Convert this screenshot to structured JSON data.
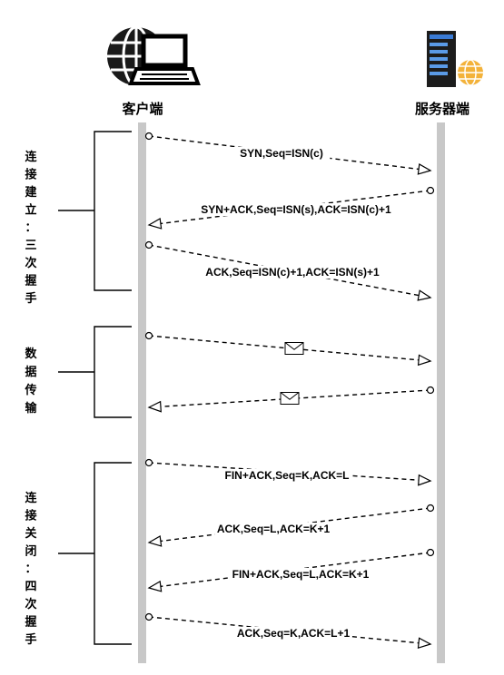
{
  "nodes": {
    "client": {
      "label": "客户端",
      "icon": "globe-laptop-icon"
    },
    "server": {
      "label": "服务器端",
      "icon": "server-globe-icon"
    }
  },
  "phases": [
    {
      "id": "handshake",
      "label": "连接建立：三次握手"
    },
    {
      "id": "transfer",
      "label": "数据传输"
    },
    {
      "id": "teardown",
      "label": "连接关闭：四次握手"
    }
  ],
  "messages": [
    {
      "label": "SYN,Seq=ISN(c)",
      "direction": "client-to-server"
    },
    {
      "label": "SYN+ACK,Seq=ISN(s),ACK=ISN(c)+1",
      "direction": "server-to-client"
    },
    {
      "label": "ACK,Seq=ISN(c)+1,ACK=ISN(s)+1",
      "direction": "client-to-server"
    },
    {
      "label": "",
      "direction": "client-to-server",
      "icon": "envelope-icon"
    },
    {
      "label": "",
      "direction": "server-to-client",
      "icon": "envelope-icon"
    },
    {
      "label": "FIN+ACK,Seq=K,ACK=L",
      "direction": "client-to-server"
    },
    {
      "label": "ACK,Seq=L,ACK=K+1",
      "direction": "server-to-client"
    },
    {
      "label": "FIN+ACK,Seq=L,ACK=K+1",
      "direction": "server-to-client"
    },
    {
      "label": "ACK,Seq=K,ACK=L+1",
      "direction": "client-to-server"
    }
  ]
}
